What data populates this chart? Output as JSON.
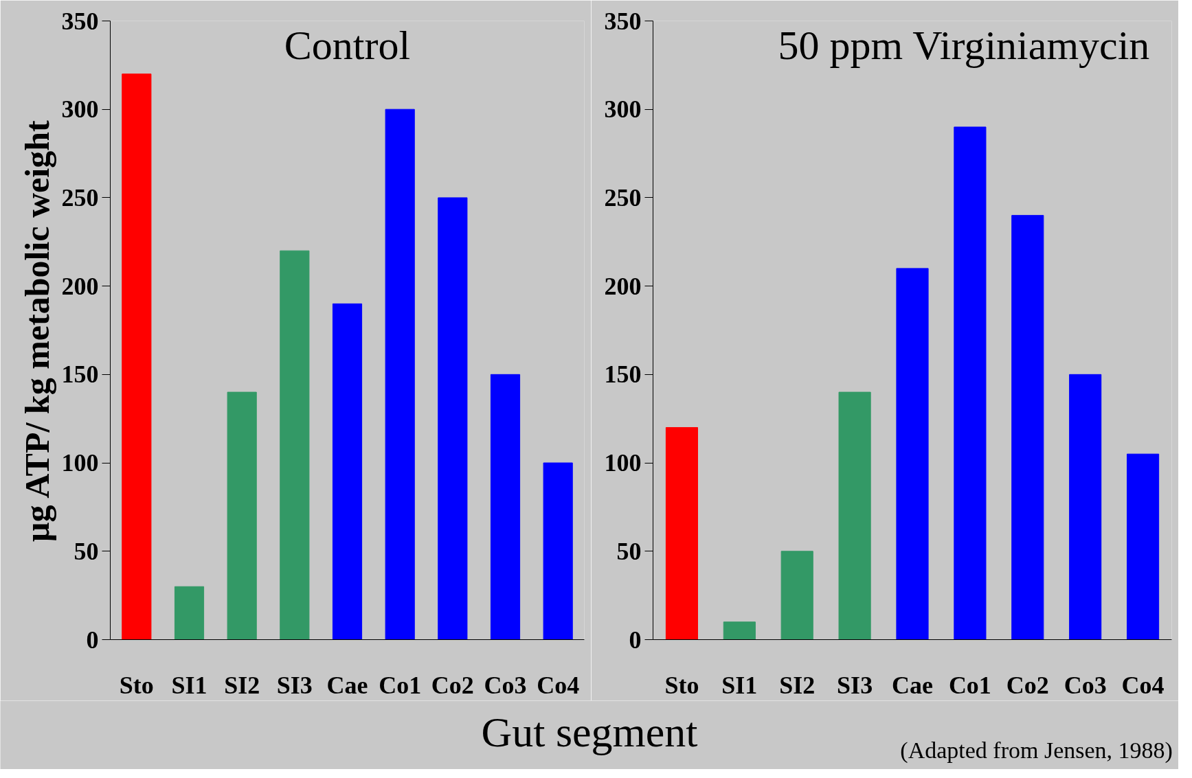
{
  "chart_data": [
    {
      "type": "bar",
      "title": "Control",
      "ylabel": "µg ATP/ kg metabolic weight",
      "xlabel": "Gut segment",
      "categories": [
        "Sto",
        "SI1",
        "SI2",
        "SI3",
        "Cae",
        "Co1",
        "Co2",
        "Co3",
        "Co4"
      ],
      "values": [
        320,
        30,
        140,
        220,
        190,
        300,
        250,
        150,
        100
      ],
      "colors": [
        "#ff0000",
        "#339966",
        "#339966",
        "#339966",
        "#0000ff",
        "#0000ff",
        "#0000ff",
        "#0000ff",
        "#0000ff"
      ],
      "ylim": [
        0,
        350
      ],
      "yticks": [
        0,
        50,
        100,
        150,
        200,
        250,
        300,
        350
      ],
      "grid": false
    },
    {
      "type": "bar",
      "title": "50 ppm Virginiamycin",
      "annotations": [
        "(Adapted from Jensen, 1988)"
      ],
      "categories": [
        "Sto",
        "SI1",
        "SI2",
        "SI3",
        "Cae",
        "Co1",
        "Co2",
        "Co3",
        "Co4"
      ],
      "values": [
        120,
        10,
        50,
        140,
        210,
        290,
        240,
        150,
        105
      ],
      "colors": [
        "#ff0000",
        "#339966",
        "#339966",
        "#339966",
        "#0000ff",
        "#0000ff",
        "#0000ff",
        "#0000ff",
        "#0000ff"
      ],
      "ylim": [
        0,
        350
      ],
      "yticks": [
        0,
        50,
        100,
        150,
        200,
        250,
        300,
        350
      ],
      "grid": false
    }
  ]
}
